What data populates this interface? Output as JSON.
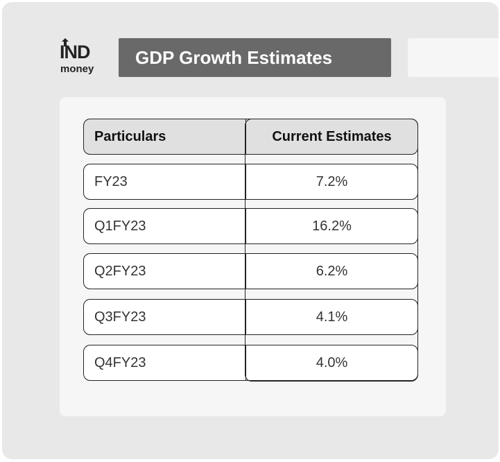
{
  "logo": {
    "line1": "IND",
    "line2": "money"
  },
  "title": "GDP Growth Estimates",
  "chart_data": {
    "type": "table",
    "columns": [
      "Particulars",
      "Current Estimates"
    ],
    "rows": [
      {
        "particular": "FY23",
        "estimate": "7.2%"
      },
      {
        "particular": "Q1FY23",
        "estimate": "16.2%"
      },
      {
        "particular": "Q2FY23",
        "estimate": "6.2%"
      },
      {
        "particular": "Q3FY23",
        "estimate": "4.1%"
      },
      {
        "particular": "Q4FY23",
        "estimate": "4.0%"
      }
    ]
  },
  "colors": {
    "title_bg": "#696969",
    "header_bg": "#e0e0e0",
    "frame_bg": "#e8e8e8",
    "panel_bg": "#f6f6f6"
  }
}
